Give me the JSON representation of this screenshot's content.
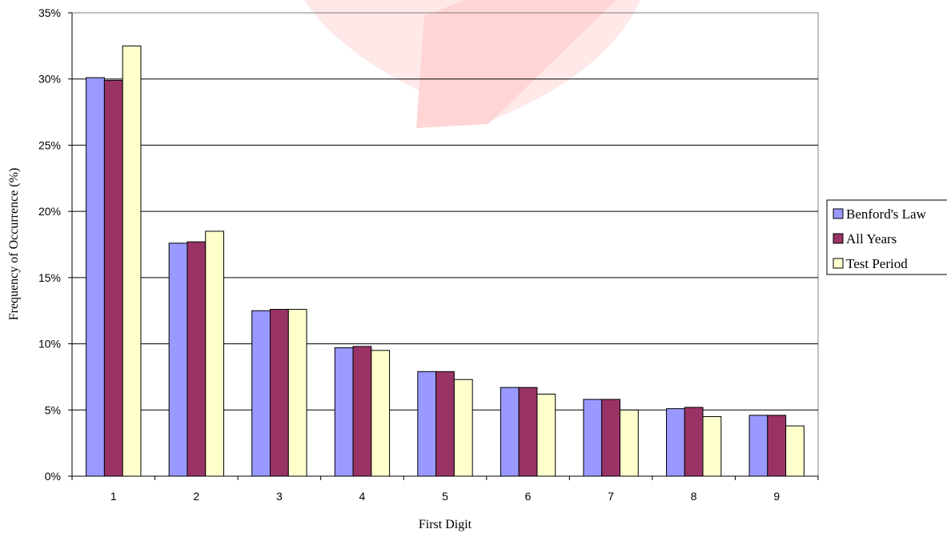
{
  "chart_data": {
    "type": "bar",
    "title": "",
    "xlabel": "First Digit",
    "ylabel": "Frequency of Occurrence (%)",
    "categories": [
      "1",
      "2",
      "3",
      "4",
      "5",
      "6",
      "7",
      "8",
      "9"
    ],
    "ylim": [
      0,
      35
    ],
    "ytick_values": [
      0,
      5,
      10,
      15,
      20,
      25,
      30,
      35
    ],
    "ytick_labels": [
      "0%",
      "5%",
      "10%",
      "15%",
      "20%",
      "25%",
      "30%",
      "35%"
    ],
    "grid": "horizontal",
    "legend_position": "right",
    "series": [
      {
        "name": "Benford's Law",
        "color": "#9999ff",
        "values": [
          30.1,
          17.6,
          12.5,
          9.7,
          7.9,
          6.7,
          5.8,
          5.1,
          4.6
        ]
      },
      {
        "name": "All Years",
        "color": "#993366",
        "values": [
          29.9,
          17.7,
          12.6,
          9.8,
          7.9,
          6.7,
          5.8,
          5.2,
          4.6
        ]
      },
      {
        "name": "Test Period",
        "color": "#ffffcc",
        "values": [
          32.5,
          18.5,
          12.6,
          9.5,
          7.3,
          6.2,
          5.0,
          4.5,
          3.8
        ]
      }
    ]
  }
}
